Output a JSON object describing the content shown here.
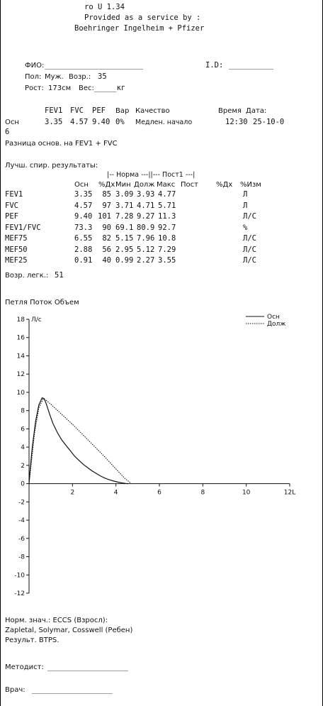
{
  "header": {
    "line1": "ro U 1.34",
    "line2": "Provided as a service by :",
    "line3": "Boehringer Ingelheim + Pfizer"
  },
  "patient": {
    "fio_label": "ФИО:",
    "fio_value": "______________________",
    "id_label": "I.D:",
    "id_value": "__________",
    "sex_label": "Пол:",
    "sex_value": "Муж.",
    "age_label": "Возр.:",
    "age_value": "35",
    "height_label": "Рост:",
    "height_value": "173см",
    "weight_label": "Вес:",
    "weight_value": "_____кг"
  },
  "test": {
    "headers": [
      "FEV1",
      "FVC",
      "PEF",
      "Вар",
      "Качество",
      "Время",
      "Дата:"
    ],
    "row_label": "Осн",
    "row_values": [
      "3.35",
      "4.57",
      "9.40",
      "0%",
      "Медлен. начало",
      "12:30",
      "25-10-0"
    ],
    "wrap": "6",
    "diff_note": "Разница основ. на FEV1 + FVC"
  },
  "results": {
    "title": "Лучш. спир. результаты:",
    "group_norm": "|-- Норма ---||--- Пост1 ---|",
    "col_headers": [
      "Осн",
      "%Дх",
      "Мин",
      "Долж",
      "Макс",
      "Пост",
      "%Дх",
      "%Изм"
    ],
    "rows": [
      {
        "name": "FEV1",
        "osn": "3.35",
        "pct": "85",
        "min": "3.09",
        "dolzh": "3.93",
        "max": "4.77",
        "unit": "Л"
      },
      {
        "name": "FVC",
        "osn": "4.57",
        "pct": "97",
        "min": "3.71",
        "dolzh": "4.71",
        "max": "5.71",
        "unit": "Л"
      },
      {
        "name": "PEF",
        "osn": "9.40",
        "pct": "101",
        "min": "7.28",
        "dolzh": "9.27",
        "max": "11.3",
        "unit": "Л/С"
      },
      {
        "name": "FEV1/FVC",
        "osn": "73.3",
        "pct": "90",
        "min": "69.1",
        "dolzh": "80.9",
        "max": "92.7",
        "unit": "%"
      },
      {
        "name": "MEF75",
        "osn": "6.55",
        "pct": "82",
        "min": "5.15",
        "dolzh": "7.96",
        "max": "10.8",
        "unit": "Л/С"
      },
      {
        "name": "MEF50",
        "osn": "2.88",
        "pct": "56",
        "min": "2.95",
        "dolzh": "5.12",
        "max": "7.29",
        "unit": "Л/С"
      },
      {
        "name": "MEF25",
        "osn": "0.91",
        "pct": "40",
        "min": "0.99",
        "dolzh": "2.27",
        "max": "3.55",
        "unit": "Л/С"
      }
    ],
    "lung_age_label": "Возр. легк.:",
    "lung_age_value": "51"
  },
  "chart_data": {
    "type": "line",
    "title": "Петля Поток Объем",
    "ylabel": "Л/с",
    "xlabel": "L",
    "xlim": [
      0,
      12
    ],
    "ylim": [
      -12,
      18
    ],
    "xticks": [
      2,
      4,
      6,
      8,
      10,
      12
    ],
    "yticks": [
      18,
      16,
      14,
      12,
      10,
      8,
      6,
      4,
      2,
      0,
      -2,
      -4,
      -6,
      -8,
      -10,
      -12
    ],
    "legend_position": "top-right",
    "series": [
      {
        "name": "Осн",
        "style": "solid",
        "x": [
          0,
          0.05,
          0.15,
          0.3,
          0.45,
          0.6,
          0.7,
          0.8,
          0.95,
          1.1,
          1.3,
          1.5,
          1.7,
          1.9,
          2.1,
          2.3,
          2.5,
          2.7,
          2.9,
          3.1,
          3.3,
          3.5,
          3.7,
          3.9,
          4.1,
          4.3,
          4.45,
          4.57
        ],
        "y": [
          0,
          1.5,
          4.0,
          6.8,
          8.6,
          9.4,
          9.3,
          8.7,
          7.6,
          6.6,
          5.6,
          4.8,
          4.2,
          3.6,
          3.0,
          2.55,
          2.1,
          1.75,
          1.4,
          1.1,
          0.82,
          0.6,
          0.42,
          0.28,
          0.16,
          0.07,
          0.02,
          0
        ]
      },
      {
        "name": "Долж",
        "style": "dotted",
        "x": [
          0,
          0.1,
          0.25,
          0.45,
          0.65,
          0.8,
          1.0,
          1.5,
          2.0,
          2.5,
          3.0,
          3.5,
          4.0,
          4.4,
          4.71
        ],
        "y": [
          0,
          2.2,
          5.5,
          8.3,
          9.27,
          9.1,
          8.7,
          7.6,
          6.5,
          5.3,
          4.1,
          2.9,
          1.6,
          0.6,
          0
        ]
      }
    ]
  },
  "norms": {
    "line1": "Норм. знач.: ECCS (Взросл):",
    "line2": "Zapletal, Solymar, Cosswell (Ребен)",
    "line3": "Результ. BTPS."
  },
  "signatures": {
    "methodist_label": "Методист:",
    "methodist_line": "__________________",
    "doctor_label": "Врач:",
    "doctor_line": "__________________"
  }
}
